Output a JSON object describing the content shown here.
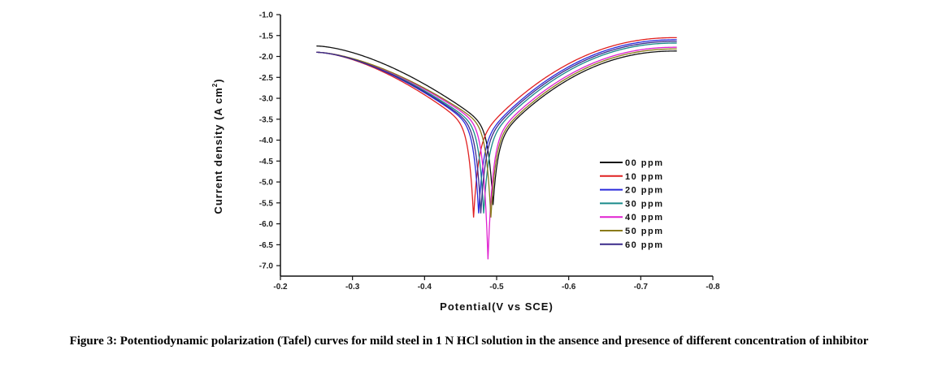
{
  "caption": "Figure 3: Potentiodynamic polarization (Tafel) curves for mild steel in 1 N HCl solution in the ansence and presence of different concentration of inhibitor",
  "chart_data": {
    "type": "line",
    "xlabel": "Potential(V vs SCE)",
    "ylabel": "Current density (A cm",
    "ylabel_sup": "2",
    "ylabel_close": ")",
    "xlim": [
      -0.2,
      -0.8
    ],
    "ylim": [
      -7.25,
      -1.0
    ],
    "x_ticks": [
      -0.2,
      -0.3,
      -0.4,
      -0.5,
      -0.6,
      -0.7,
      -0.8
    ],
    "x_tick_labels": [
      "-0.2",
      "-0.3",
      "-0.4",
      "-0.5",
      "-0.6",
      "-0.7",
      "-0.8"
    ],
    "y_ticks": [
      -1.0,
      -1.5,
      -2.0,
      -2.5,
      -3.0,
      -3.5,
      -4.0,
      -4.5,
      -5.0,
      -5.5,
      -6.0,
      -6.5,
      -7.0
    ],
    "y_tick_labels": [
      "-1.0",
      "-1.5",
      "-2.0",
      "-2.5",
      "-3.0",
      "-3.5",
      "-4.0",
      "-4.5",
      "-5.0",
      "-5.5",
      "-6.0",
      "-6.5",
      "-7.0"
    ],
    "grid": false,
    "legend_position": "right",
    "series": [
      {
        "name": "00 ppm",
        "color": "#111111",
        "x_start": -0.25,
        "y_start": -1.75,
        "ecorr": -0.495,
        "y_min": -5.55,
        "y_end": -1.87,
        "x_end": -0.75
      },
      {
        "name": "10 ppm",
        "color": "#e02020",
        "x_start": -0.25,
        "y_start": -1.9,
        "ecorr": -0.468,
        "y_min": -5.85,
        "y_end": -1.55,
        "x_end": -0.75
      },
      {
        "name": "20 ppm",
        "color": "#2a2adc",
        "x_start": -0.25,
        "y_start": -1.9,
        "ecorr": -0.475,
        "y_min": -5.75,
        "y_end": -1.6,
        "x_end": -0.75
      },
      {
        "name": "30 ppm",
        "color": "#1a8a8a",
        "x_start": -0.25,
        "y_start": -1.9,
        "ecorr": -0.482,
        "y_min": -5.75,
        "y_end": -1.68,
        "x_end": -0.75
      },
      {
        "name": "40 ppm",
        "color": "#e020d0",
        "x_start": -0.25,
        "y_start": -1.9,
        "ecorr": -0.488,
        "y_min": -6.85,
        "y_end": -1.78,
        "x_end": -0.75
      },
      {
        "name": "50 ppm",
        "color": "#8a7a1a",
        "x_start": -0.25,
        "y_start": -1.9,
        "ecorr": -0.492,
        "y_min": -5.85,
        "y_end": -1.82,
        "x_end": -0.75
      },
      {
        "name": "60 ppm",
        "color": "#3a2a8a",
        "x_start": -0.25,
        "y_start": -1.9,
        "ecorr": -0.478,
        "y_min": -5.75,
        "y_end": -1.64,
        "x_end": -0.75
      }
    ]
  }
}
